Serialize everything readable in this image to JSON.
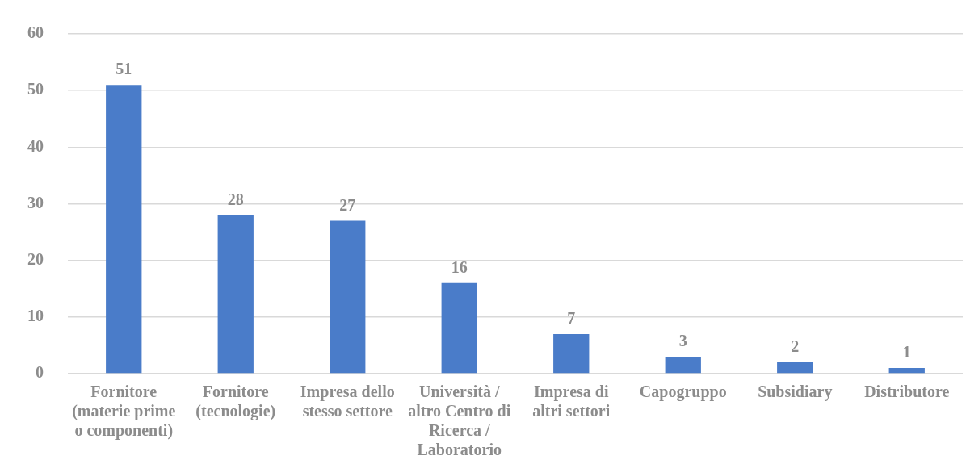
{
  "chart_data": {
    "type": "bar",
    "categories": [
      "Fornitore (materie prime o componenti)",
      "Fornitore (tecnologie)",
      "Impresa dello stesso settore",
      "Università / altro Centro di Ricerca / Laboratorio",
      "Impresa di altri settori",
      "Capogruppo",
      "Subsidiary",
      "Distributore"
    ],
    "values": [
      51,
      28,
      27,
      16,
      7,
      3,
      2,
      1
    ],
    "color": "#4a7cc9",
    "ylim": [
      0,
      60
    ],
    "yticks": [
      0,
      10,
      20,
      30,
      40,
      50,
      60
    ],
    "grid": "y",
    "data_labels": true,
    "legend": false
  }
}
